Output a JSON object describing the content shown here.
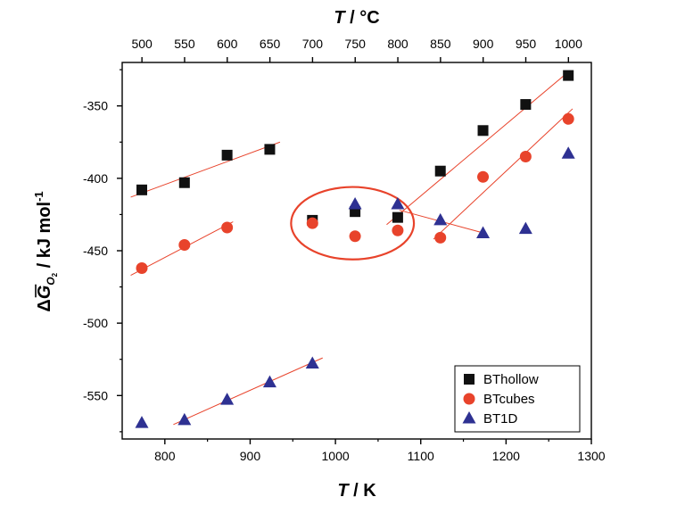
{
  "chart_data": {
    "type": "scatter",
    "x_axis": {
      "label_var": "T",
      "label_unit": " / K",
      "range": [
        750,
        1300
      ],
      "ticks": [
        800,
        900,
        1000,
        1100,
        1200,
        1300
      ]
    },
    "x2_axis": {
      "label_var": "T",
      "label_unit": " / °C",
      "range": [
        476.85,
        1026.85
      ],
      "ticks": [
        500,
        550,
        600,
        650,
        700,
        750,
        800,
        850,
        900,
        950,
        1000
      ],
      "tick_labels": [
        "500",
        "",
        "600",
        "",
        "700",
        "",
        "800",
        "",
        "900",
        "",
        "1000"
      ]
    },
    "y_axis": {
      "label_prefix": "Δ",
      "label_var": "G",
      "label_sub": "O",
      "label_subsub": "2",
      "label_unit": " / kJ mol",
      "label_sup": "-1",
      "range": [
        -580,
        -320
      ],
      "ticks": [
        -550,
        -500,
        -450,
        -400,
        -350
      ]
    },
    "series": [
      {
        "name": "BThollow",
        "marker": "square",
        "color": "#111111",
        "x": [
          773,
          823,
          873,
          923,
          973,
          1023,
          1073,
          1123,
          1173,
          1223,
          1273
        ],
        "y": [
          -408,
          -403,
          -384,
          -380,
          -429,
          -423,
          -427,
          -395,
          -367,
          -349,
          -329
        ]
      },
      {
        "name": "BTcubes",
        "marker": "circle",
        "color": "#e8432b",
        "x": [
          773,
          823,
          873,
          973,
          1023,
          1073,
          1123,
          1173,
          1223,
          1273
        ],
        "y": [
          -462,
          -446,
          -434,
          -431,
          -440,
          -436,
          -441,
          -399,
          -385,
          -359
        ]
      },
      {
        "name": "BT1D",
        "marker": "triangle",
        "color": "#2e3192",
        "x": [
          773,
          823,
          873,
          923,
          973,
          1023,
          1073,
          1123,
          1173,
          1223,
          1273
        ],
        "y": [
          -569,
          -567,
          -553,
          -541,
          -528,
          -418,
          -418,
          -429,
          -438,
          -435,
          -383
        ]
      }
    ],
    "fit_lines": [
      {
        "x": [
          760,
          935
        ],
        "y": [
          -413,
          -375
        ]
      },
      {
        "x": [
          1060,
          1272
        ],
        "y": [
          -432,
          -327
        ]
      },
      {
        "x": [
          760,
          880
        ],
        "y": [
          -467,
          -430
        ]
      },
      {
        "x": [
          1115,
          1278
        ],
        "y": [
          -442,
          -352
        ]
      },
      {
        "x": [
          810,
          985
        ],
        "y": [
          -570,
          -524
        ]
      },
      {
        "x": [
          1075,
          1175
        ],
        "y": [
          -422,
          -438
        ]
      }
    ],
    "fit_line_color": "#e8432b",
    "annotation_ellipse": {
      "cx": 1020,
      "cy": -431,
      "rx": 72,
      "ry": 25,
      "color": "#e8432b"
    },
    "legend_position": "bottom-right",
    "grid": false
  }
}
